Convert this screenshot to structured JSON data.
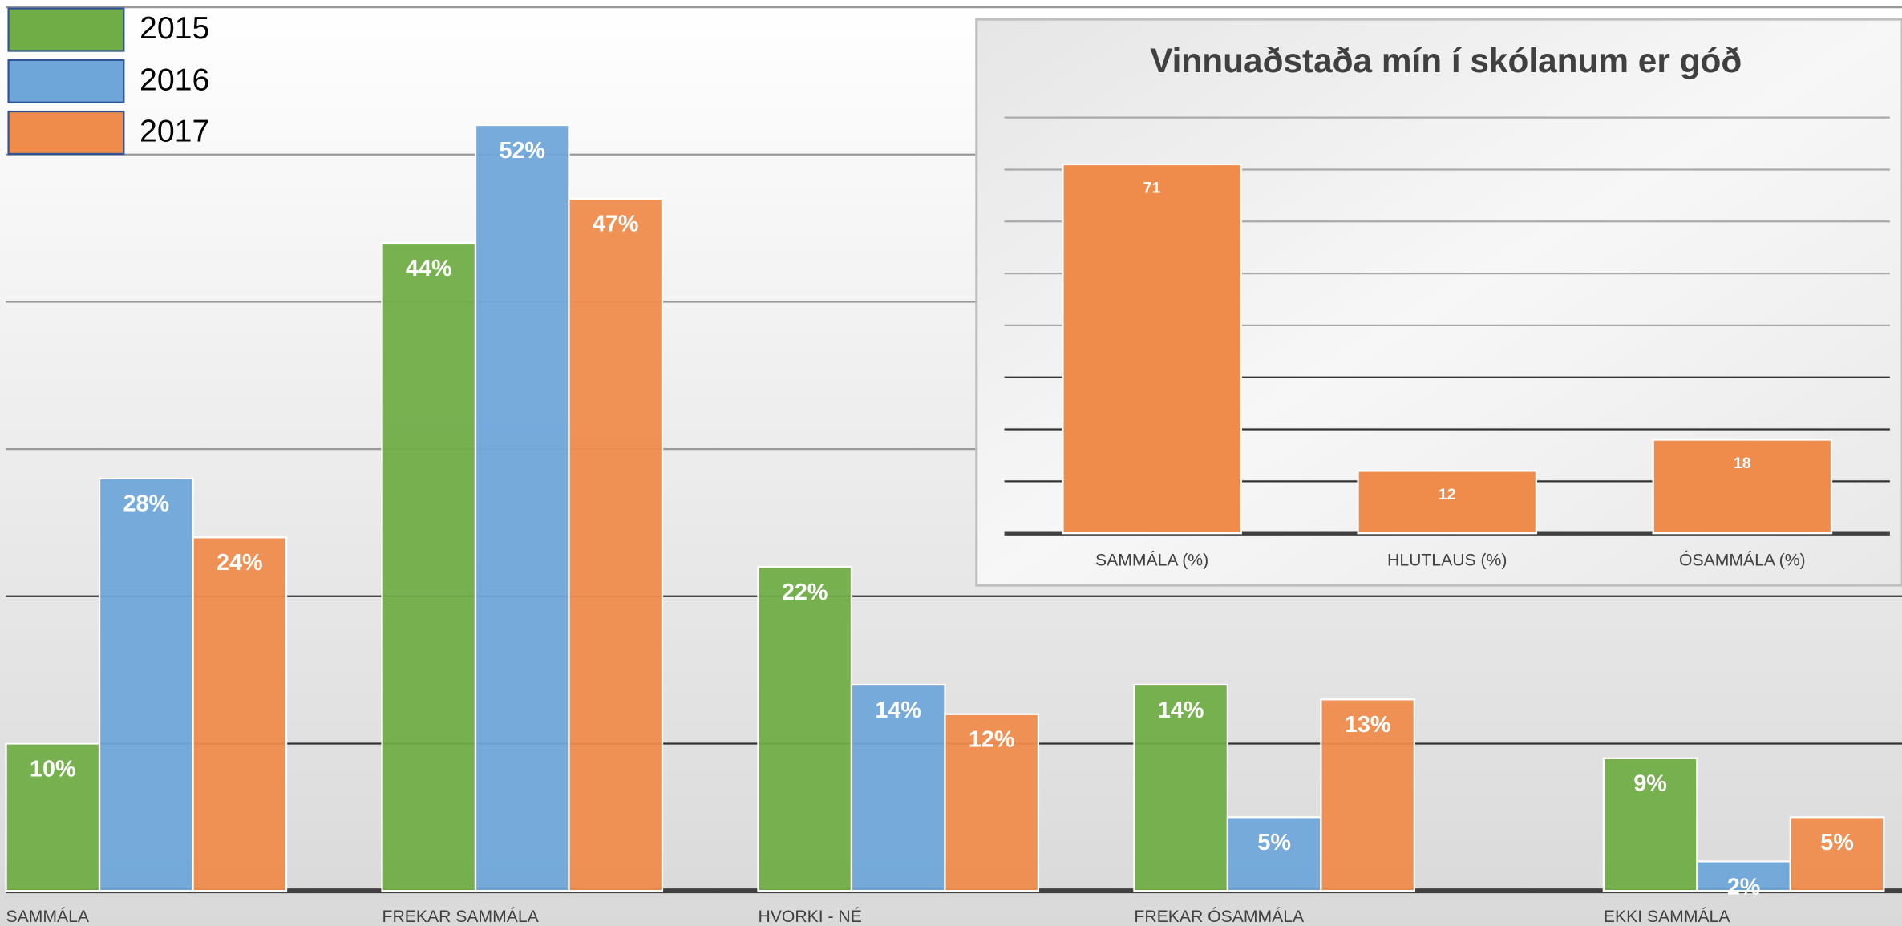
{
  "chart_data": [
    {
      "type": "bar",
      "categories": [
        "SAMMÁLA",
        "FREKAR SAMMÁLA",
        "HVORKI - NÉ",
        "FREKAR ÓSAMMÁLA",
        "EKKI SAMMÁLA"
      ],
      "series": [
        {
          "name": "2015",
          "color": "#70ad47",
          "values": [
            10,
            44,
            22,
            14,
            9
          ],
          "value_labels": [
            "10%",
            "44%",
            "22%",
            "14%",
            "9%"
          ]
        },
        {
          "name": "2016",
          "color": "#6fa6da",
          "values": [
            28,
            52,
            14,
            5,
            2
          ],
          "value_labels": [
            "28%",
            "52%",
            "14%",
            "5%",
            "2%"
          ]
        },
        {
          "name": "2017",
          "color": "#ef8c4c",
          "values": [
            24,
            47,
            12,
            13,
            5
          ],
          "value_labels": [
            "24%",
            "47%",
            "12%",
            "13%",
            "5%"
          ]
        }
      ],
      "ylim": [
        0,
        60
      ],
      "yticks": [
        0,
        10,
        20,
        30,
        40,
        50,
        60
      ],
      "grid": true,
      "legend": "top-left"
    },
    {
      "type": "bar",
      "title": "Vinnuaðstaða mín í skólanum er góð",
      "categories": [
        "SAMMÁLA (%)",
        "HLUTLAUS (%)",
        "ÓSAMMÁLA (%)"
      ],
      "values": [
        71,
        12,
        18
      ],
      "color": "#ef8c4c",
      "ylim": [
        0,
        80
      ],
      "yticks": [
        0,
        10,
        20,
        30,
        40,
        50,
        60,
        70,
        80
      ],
      "grid": true
    }
  ]
}
